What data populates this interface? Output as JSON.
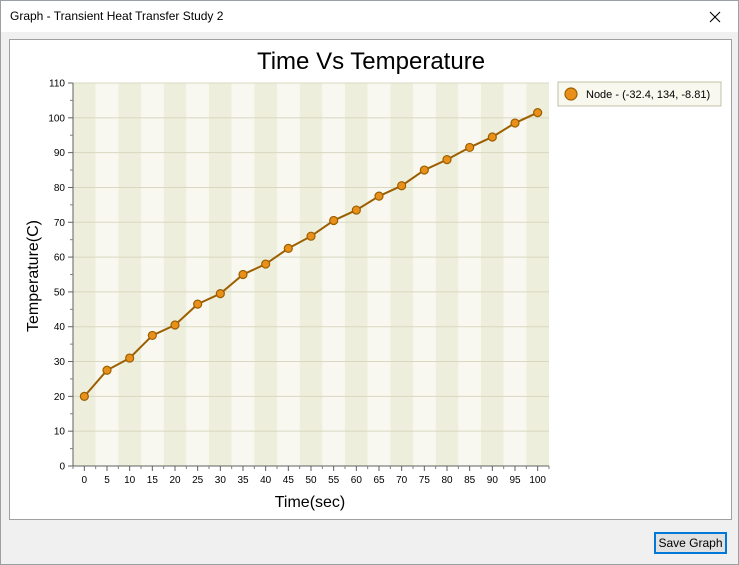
{
  "window": {
    "title": "Graph - Transient Heat Transfer Study 2",
    "close_icon": "close-icon"
  },
  "footer": {
    "save_label": "Save Graph"
  },
  "colors": {
    "series_fill": "#e8901a",
    "series_stroke": "#9c5f00",
    "plot_band_dark": "#eeeedd",
    "plot_band_light": "#f8f8f0",
    "grid": "#d8d8c0"
  },
  "chart_data": {
    "type": "line",
    "title": "Time Vs Temperature",
    "xlabel": "Time(sec)",
    "ylabel": "Temperature(C)",
    "xlim": [
      -2.5,
      102.5
    ],
    "ylim": [
      0,
      110
    ],
    "x_ticks": [
      0,
      5,
      10,
      15,
      20,
      25,
      30,
      35,
      40,
      45,
      50,
      55,
      60,
      65,
      70,
      75,
      80,
      85,
      90,
      95,
      100
    ],
    "y_ticks": [
      0,
      10,
      20,
      30,
      40,
      50,
      60,
      70,
      80,
      90,
      100,
      110
    ],
    "legend_position": "right",
    "grid": true,
    "series": [
      {
        "name": "Node - (-32.4, 134, -8.81)",
        "x": [
          0,
          5,
          10,
          15,
          20,
          25,
          30,
          35,
          40,
          45,
          50,
          55,
          60,
          65,
          70,
          75,
          80,
          85,
          90,
          95,
          100
        ],
        "values": [
          20,
          27.5,
          31,
          37.5,
          40.5,
          46.5,
          49.5,
          55,
          58,
          62.5,
          66,
          70.5,
          73.5,
          77.5,
          80.5,
          85,
          88,
          91.5,
          94.5,
          98.5,
          101.5
        ]
      }
    ]
  }
}
